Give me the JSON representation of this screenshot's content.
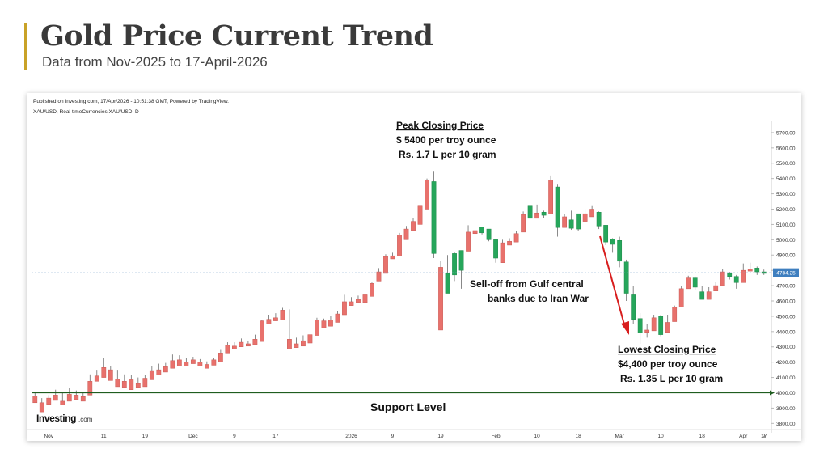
{
  "header": {
    "title": "Gold Price Current Trend",
    "subtitle": "Data from Nov-2025 to 17-April-2026"
  },
  "colors": {
    "accent": "#c9a227",
    "up": "#26a65b",
    "down": "#e8716c",
    "arrow": "#d81e1e",
    "support": "#1f5d1f",
    "price_line": "#7fa2c9"
  },
  "chart_data": {
    "type": "candlestick",
    "published_note": "Published on Investing.com, 17/Apr/2026 - 10:51:38 GMT, Powered by TradingView.",
    "symbol_note": "XAU/USD, Real-timeCurrencies:XAU/USD, D",
    "logo_text": "Investing",
    "logo_suffix": ".com",
    "ylim": [
      3770,
      5800
    ],
    "y_ticks": [
      "5700.00",
      "5600.00",
      "5500.00",
      "5400.00",
      "5300.00",
      "5200.00",
      "5100.00",
      "5000.00",
      "4900.00",
      "4800.00",
      "4700.00",
      "4600.00",
      "4500.00",
      "4400.00",
      "4300.00",
      "4200.00",
      "4100.00",
      "4000.00",
      "3900.00",
      "3800.00"
    ],
    "x_ticks": [
      "Nov",
      "11",
      "19",
      "Dec",
      "9",
      "17",
      "2026",
      "9",
      "19",
      "Feb",
      "10",
      "18",
      "Mar",
      "10",
      "18",
      "Apr",
      "9",
      "17"
    ],
    "current_price": "4784.25",
    "current_price_value": 4784.25,
    "support_level": 4000,
    "series": [
      [
        3980,
        4005,
        3960,
        3935
      ],
      [
        3935,
        3965,
        3915,
        3875
      ],
      [
        3965,
        3985,
        3935,
        3925
      ],
      [
        3985,
        4020,
        3965,
        3950
      ],
      [
        3945,
        4000,
        3935,
        3920
      ],
      [
        3990,
        4030,
        3975,
        3945
      ],
      [
        3985,
        4015,
        3965,
        3955
      ],
      [
        3975,
        4000,
        3950,
        3945
      ],
      [
        4075,
        4120,
        4075,
        3985
      ],
      [
        4110,
        4150,
        4100,
        4075
      ],
      [
        4165,
        4230,
        4140,
        4100
      ],
      [
        4150,
        4175,
        4110,
        4080
      ],
      [
        4090,
        4150,
        4085,
        4040
      ],
      [
        4075,
        4120,
        4060,
        4035
      ],
      [
        4085,
        4115,
        4080,
        4020
      ],
      [
        4060,
        4100,
        4060,
        4035
      ],
      [
        4095,
        4115,
        4085,
        4040
      ],
      [
        4145,
        4175,
        4135,
        4085
      ],
      [
        4150,
        4190,
        4135,
        4115
      ],
      [
        4170,
        4195,
        4165,
        4135
      ],
      [
        4210,
        4250,
        4200,
        4160
      ],
      [
        4215,
        4245,
        4205,
        4175
      ],
      [
        4200,
        4230,
        4190,
        4175
      ],
      [
        4215,
        4235,
        4205,
        4190
      ],
      [
        4200,
        4220,
        4195,
        4175
      ],
      [
        4185,
        4205,
        4175,
        4160
      ],
      [
        4215,
        4230,
        4210,
        4180
      ],
      [
        4260,
        4280,
        4250,
        4200
      ],
      [
        4310,
        4330,
        4305,
        4260
      ],
      [
        4305,
        4330,
        4300,
        4285
      ],
      [
        4330,
        4355,
        4325,
        4300
      ],
      [
        4320,
        4340,
        4320,
        4305
      ],
      [
        4350,
        4380,
        4345,
        4315
      ],
      [
        4470,
        4475,
        4455,
        4335
      ],
      [
        4480,
        4510,
        4475,
        4450
      ],
      [
        4490,
        4520,
        4485,
        4470
      ],
      [
        4540,
        4555,
        4525,
        4475
      ],
      [
        4350,
        4545,
        4315,
        4285
      ],
      [
        4320,
        4360,
        4310,
        4295
      ],
      [
        4340,
        4375,
        4325,
        4305
      ],
      [
        4380,
        4405,
        4375,
        4325
      ],
      [
        4475,
        4490,
        4465,
        4375
      ],
      [
        4470,
        4485,
        4445,
        4425
      ],
      [
        4475,
        4505,
        4470,
        4435
      ],
      [
        4515,
        4535,
        4505,
        4460
      ],
      [
        4595,
        4640,
        4585,
        4510
      ],
      [
        4595,
        4625,
        4590,
        4570
      ],
      [
        4610,
        4635,
        4605,
        4590
      ],
      [
        4640,
        4650,
        4630,
        4590
      ],
      [
        4715,
        4720,
        4685,
        4630
      ],
      [
        4790,
        4815,
        4775,
        4730
      ],
      [
        4890,
        4905,
        4885,
        4780
      ],
      [
        4895,
        4915,
        4890,
        4875
      ],
      [
        5030,
        5045,
        5020,
        4895
      ],
      [
        5070,
        5090,
        5060,
        5000
      ],
      [
        5120,
        5140,
        5090,
        5060
      ],
      [
        5220,
        5350,
        5180,
        5100
      ],
      [
        5390,
        5400,
        5390,
        5200
      ],
      [
        4910,
        5450,
        4880,
        5380
      ],
      [
        4820,
        4860,
        4620,
        4410
      ],
      [
        4650,
        4900,
        4650,
        4780
      ],
      [
        4770,
        4920,
        4730,
        4910
      ],
      [
        4800,
        4900,
        4680,
        4930
      ],
      [
        5050,
        5095,
        5045,
        4925
      ],
      [
        5060,
        5080,
        5045,
        5040
      ],
      [
        5045,
        5080,
        5035,
        5085
      ],
      [
        5000,
        5060,
        4990,
        5070
      ],
      [
        4880,
        4990,
        4850,
        5000
      ],
      [
        4980,
        5000,
        4930,
        4850
      ],
      [
        4990,
        5010,
        4965,
        4965
      ],
      [
        5040,
        5055,
        5015,
        4985
      ],
      [
        5165,
        5185,
        5165,
        5050
      ],
      [
        5140,
        5200,
        5130,
        5220
      ],
      [
        5175,
        5230,
        5165,
        5140
      ],
      [
        5160,
        5190,
        5140,
        5180
      ],
      [
        5390,
        5420,
        5320,
        5170
      ],
      [
        5080,
        5360,
        5020,
        5345
      ],
      [
        5150,
        5170,
        5100,
        5080
      ],
      [
        5075,
        5190,
        5065,
        5130
      ],
      [
        5070,
        5170,
        5060,
        5170
      ],
      [
        5170,
        5200,
        5150,
        5120
      ],
      [
        5200,
        5220,
        5165,
        5150
      ],
      [
        5090,
        5185,
        5070,
        5180
      ],
      [
        4985,
        5080,
        4965,
        5095
      ],
      [
        4970,
        5010,
        4915,
        5005
      ],
      [
        4860,
        5020,
        4820,
        4995
      ],
      [
        4650,
        4870,
        4600,
        4855
      ],
      [
        4480,
        4700,
        4450,
        4640
      ],
      [
        4390,
        4520,
        4320,
        4485
      ],
      [
        4410,
        4450,
        4360,
        4395
      ],
      [
        4490,
        4510,
        4470,
        4405
      ],
      [
        4380,
        4510,
        4370,
        4500
      ],
      [
        4460,
        4510,
        4450,
        4395
      ],
      [
        4560,
        4570,
        4550,
        4465
      ],
      [
        4680,
        4700,
        4660,
        4560
      ],
      [
        4750,
        4765,
        4740,
        4680
      ],
      [
        4690,
        4760,
        4670,
        4750
      ],
      [
        4610,
        4700,
        4610,
        4660
      ],
      [
        4660,
        4690,
        4630,
        4610
      ],
      [
        4700,
        4725,
        4690,
        4665
      ],
      [
        4790,
        4810,
        4765,
        4700
      ],
      [
        4760,
        4790,
        4740,
        4780
      ],
      [
        4720,
        4770,
        4680,
        4760
      ],
      [
        4800,
        4845,
        4790,
        4720
      ],
      [
        4810,
        4850,
        4800,
        4795
      ],
      [
        4790,
        4825,
        4770,
        4815
      ],
      [
        4780,
        4805,
        4770,
        4790
      ]
    ],
    "annotations": {
      "peak_title": "Peak Closing Price",
      "peak_line1": "$ 5400 per troy ounce",
      "peak_line2": "Rs. 1.7 L per 10 gram",
      "selloff_line1": "Sell-off from Gulf central",
      "selloff_line2": "banks due to Iran War",
      "low_title": "Lowest Closing Price",
      "low_line1": "$4,400 per troy ounce",
      "low_line2": "Rs. 1.35 L per 10 gram",
      "support": "Support Level"
    }
  }
}
